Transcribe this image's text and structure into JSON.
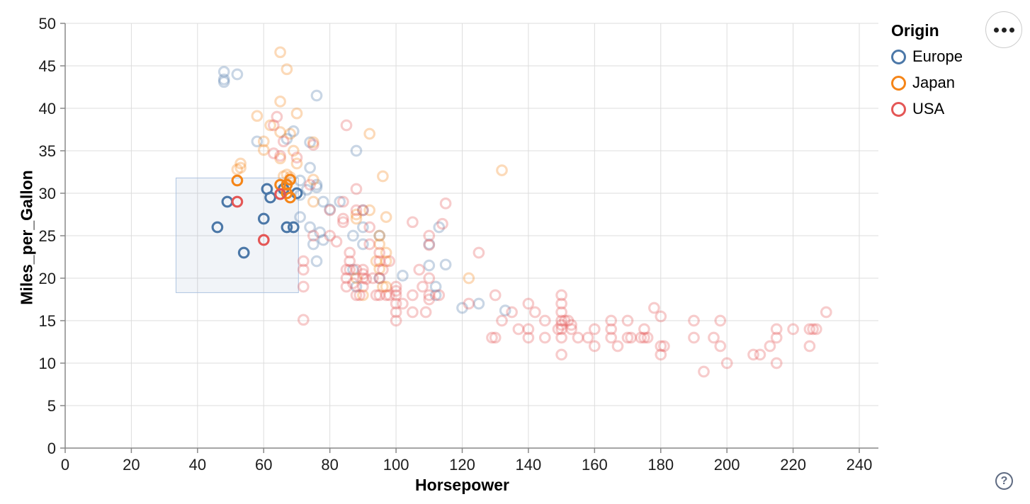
{
  "controls": {
    "actions_button_icon": "more-options-ellipsis",
    "help_label": "?"
  },
  "chart_data": {
    "type": "scatter",
    "title": "",
    "xlabel": "Horsepower",
    "ylabel": "Miles_per_Gallon",
    "xlim": [
      0,
      240
    ],
    "ylim": [
      0,
      50
    ],
    "x_ticks": [
      0,
      20,
      40,
      60,
      80,
      100,
      120,
      140,
      160,
      180,
      200,
      220,
      240
    ],
    "y_ticks": [
      0,
      5,
      10,
      15,
      20,
      25,
      30,
      35,
      40,
      45,
      50
    ],
    "grid": true,
    "legend": {
      "title": "Origin",
      "position": "top-right",
      "entries": [
        {
          "label": "Europe",
          "color": "#4c78a8"
        },
        {
          "label": "Japan",
          "color": "#f58518"
        },
        {
          "label": "USA",
          "color": "#e45756"
        }
      ]
    },
    "brush_selection": {
      "x0": 33.5,
      "x1": 70.5,
      "y0": 18.3,
      "y1": 31.8,
      "fill": "#4c78a8",
      "border": "#aec4e2"
    },
    "faded_opacity": 0.3,
    "series": [
      {
        "name": "Europe",
        "color": "#4c78a8",
        "points": [
          [
            46,
            26
          ],
          [
            49,
            29
          ],
          [
            54,
            23
          ],
          [
            60,
            27
          ],
          [
            61,
            30.5
          ],
          [
            62,
            29.5
          ],
          [
            66,
            30.5
          ],
          [
            67,
            26
          ],
          [
            69,
            26
          ],
          [
            70,
            30
          ],
          [
            48,
            43.1
          ],
          [
            48,
            43.4
          ],
          [
            48,
            44.3
          ],
          [
            52,
            44
          ],
          [
            76,
            41.5
          ],
          [
            58,
            36.1
          ],
          [
            67,
            36.4
          ],
          [
            69,
            37.3
          ],
          [
            74,
            36
          ],
          [
            88,
            35
          ],
          [
            74,
            33
          ],
          [
            71,
            31.5
          ],
          [
            76,
            31
          ],
          [
            76,
            30.7
          ],
          [
            73,
            30.4
          ],
          [
            71,
            29.8
          ],
          [
            78,
            29
          ],
          [
            83,
            29
          ],
          [
            90,
            28
          ],
          [
            80,
            28.1
          ],
          [
            71,
            27.2
          ],
          [
            74,
            26
          ],
          [
            90,
            26
          ],
          [
            113,
            26
          ],
          [
            87,
            25
          ],
          [
            95,
            25
          ],
          [
            77,
            25.4
          ],
          [
            75,
            24
          ],
          [
            78,
            24.5
          ],
          [
            90,
            24
          ],
          [
            110,
            24
          ],
          [
            76,
            22
          ],
          [
            110,
            21.5
          ],
          [
            115,
            21.6
          ],
          [
            87,
            21
          ],
          [
            95,
            20
          ],
          [
            102,
            20.3
          ],
          [
            112,
            19
          ],
          [
            88,
            19
          ],
          [
            112,
            18
          ],
          [
            125,
            17
          ],
          [
            120,
            16.5
          ],
          [
            133,
            16.2
          ]
        ]
      },
      {
        "name": "Japan",
        "color": "#f58518",
        "points": [
          [
            52,
            31.5
          ],
          [
            65,
            31
          ],
          [
            67,
            31
          ],
          [
            68,
            31.6
          ],
          [
            67,
            30
          ],
          [
            68,
            29.5
          ],
          [
            65,
            46.6
          ],
          [
            67,
            44.6
          ],
          [
            65,
            40.8
          ],
          [
            70,
            39.4
          ],
          [
            58,
            39.1
          ],
          [
            62,
            38
          ],
          [
            65,
            37.2
          ],
          [
            92,
            37
          ],
          [
            68,
            37
          ],
          [
            60,
            36.1
          ],
          [
            75,
            36
          ],
          [
            69,
            35
          ],
          [
            60,
            35.1
          ],
          [
            65,
            34.1
          ],
          [
            70,
            33.5
          ],
          [
            53,
            33
          ],
          [
            53,
            33.5
          ],
          [
            67,
            32.2
          ],
          [
            66,
            32
          ],
          [
            52,
            32.8
          ],
          [
            96,
            32
          ],
          [
            132,
            32.7
          ],
          [
            75,
            31.6
          ],
          [
            68,
            31.9
          ],
          [
            88,
            27
          ],
          [
            88,
            27.5
          ],
          [
            92,
            28
          ],
          [
            97,
            27.2
          ],
          [
            95,
            24
          ],
          [
            95,
            25
          ],
          [
            97,
            23
          ],
          [
            94,
            22
          ],
          [
            97,
            22
          ],
          [
            90,
            18
          ],
          [
            97,
            19
          ],
          [
            88,
            20
          ],
          [
            122,
            20
          ],
          [
            95,
            21.1
          ],
          [
            75,
            29
          ],
          [
            96,
            19
          ]
        ]
      },
      {
        "name": "USA",
        "color": "#e45756",
        "points": [
          [
            52,
            29
          ],
          [
            60,
            24.5
          ],
          [
            65,
            29.9
          ],
          [
            64,
            39
          ],
          [
            63,
            34.7
          ],
          [
            70,
            34.2
          ],
          [
            85,
            38
          ],
          [
            63,
            38
          ],
          [
            65,
            34.4
          ],
          [
            66,
            36.1
          ],
          [
            75,
            35.7
          ],
          [
            72,
            15.1
          ],
          [
            75,
            25
          ],
          [
            72,
            22
          ],
          [
            72,
            21
          ],
          [
            72,
            19
          ],
          [
            80,
            25
          ],
          [
            80,
            28
          ],
          [
            86,
            23
          ],
          [
            86,
            21
          ],
          [
            86,
            22
          ],
          [
            85,
            21
          ],
          [
            85,
            19
          ],
          [
            85,
            20
          ],
          [
            88,
            30.5
          ],
          [
            84,
            26.6
          ],
          [
            88,
            28
          ],
          [
            84,
            29
          ],
          [
            84,
            27
          ],
          [
            82,
            24.3
          ],
          [
            92,
            26
          ],
          [
            92,
            24
          ],
          [
            88,
            18
          ],
          [
            89,
            18
          ],
          [
            90,
            28
          ],
          [
            90,
            21
          ],
          [
            90,
            19
          ],
          [
            90,
            20
          ],
          [
            90,
            20.5
          ],
          [
            88,
            21
          ],
          [
            95,
            22
          ],
          [
            95,
            23
          ],
          [
            95,
            20
          ],
          [
            95,
            18
          ],
          [
            97,
            18
          ],
          [
            98,
            18
          ],
          [
            100,
            17
          ],
          [
            100,
            16
          ],
          [
            100,
            18
          ],
          [
            100,
            18.5
          ],
          [
            100,
            15
          ],
          [
            100,
            19
          ],
          [
            105,
            16
          ],
          [
            105,
            18
          ],
          [
            105,
            26.6
          ],
          [
            107,
            21
          ],
          [
            110,
            18
          ],
          [
            110,
            17.5
          ],
          [
            110,
            25
          ],
          [
            110,
            23.9
          ],
          [
            110,
            20
          ],
          [
            109,
            16
          ],
          [
            125,
            23
          ],
          [
            74,
            31
          ],
          [
            115,
            28.8
          ],
          [
            114,
            26.4
          ],
          [
            93,
            20
          ],
          [
            96,
            21
          ],
          [
            98,
            22
          ],
          [
            94,
            18
          ],
          [
            102,
            17
          ],
          [
            108,
            19
          ],
          [
            113,
            18
          ],
          [
            87,
            19.4
          ],
          [
            91,
            19.9
          ],
          [
            130,
            18
          ],
          [
            130,
            13
          ],
          [
            137,
            14
          ],
          [
            140,
            17
          ],
          [
            140,
            13
          ],
          [
            140,
            14
          ],
          [
            145,
            13
          ],
          [
            145,
            15
          ],
          [
            150,
            18
          ],
          [
            150,
            16
          ],
          [
            150,
            15
          ],
          [
            151,
            15
          ],
          [
            150,
            14
          ],
          [
            149,
            14
          ],
          [
            150,
            14.5
          ],
          [
            152,
            15
          ],
          [
            150,
            13
          ],
          [
            150,
            17
          ],
          [
            150,
            11
          ],
          [
            153,
            14
          ],
          [
            153,
            14.5
          ],
          [
            155,
            13
          ],
          [
            158,
            13
          ],
          [
            160,
            14
          ],
          [
            160,
            12
          ],
          [
            165,
            15
          ],
          [
            165,
            14
          ],
          [
            165,
            13
          ],
          [
            167,
            12
          ],
          [
            170,
            15
          ],
          [
            170,
            13
          ],
          [
            171,
            13
          ],
          [
            175,
            14
          ],
          [
            175,
            13
          ],
          [
            174,
            13
          ],
          [
            176,
            13
          ],
          [
            180,
            12
          ],
          [
            181,
            12
          ],
          [
            180,
            11
          ],
          [
            180,
            15.5
          ],
          [
            190,
            15
          ],
          [
            190,
            13
          ],
          [
            193,
            9
          ],
          [
            196,
            13
          ],
          [
            198,
            15
          ],
          [
            198,
            12
          ],
          [
            200,
            10
          ],
          [
            208,
            11
          ],
          [
            210,
            11
          ],
          [
            213,
            12
          ],
          [
            215,
            14
          ],
          [
            215,
            13
          ],
          [
            215,
            10
          ],
          [
            220,
            14
          ],
          [
            225,
            14
          ],
          [
            226,
            14
          ],
          [
            225,
            12
          ],
          [
            227,
            14
          ],
          [
            230,
            16
          ],
          [
            129,
            13
          ],
          [
            132,
            15
          ],
          [
            135,
            16
          ],
          [
            142,
            16
          ],
          [
            122,
            17
          ],
          [
            178,
            16.5
          ]
        ]
      }
    ]
  }
}
